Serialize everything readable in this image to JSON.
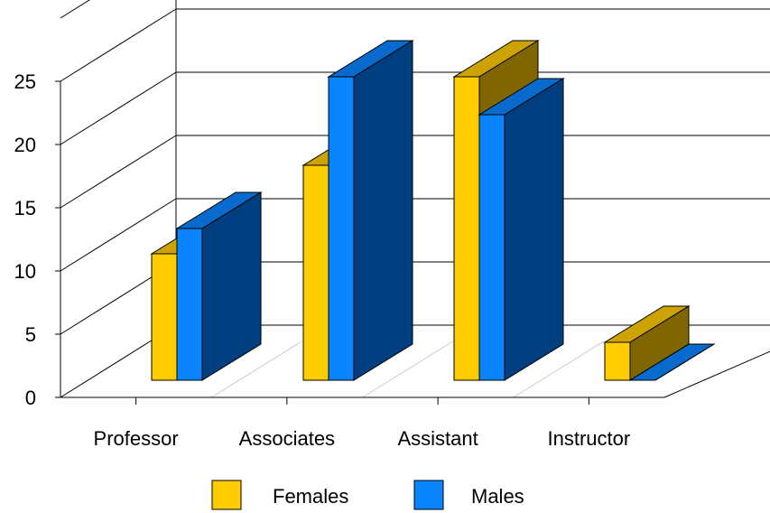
{
  "chart_data": {
    "type": "bar",
    "style": "3d",
    "categories": [
      "Professor",
      "Associates",
      "Assistant",
      "Instructor"
    ],
    "series": [
      {
        "name": "Females",
        "values": [
          10,
          17,
          24,
          3
        ],
        "color": "#FFCC00",
        "side_color": "#806600"
      },
      {
        "name": "Males",
        "values": [
          12,
          24,
          21,
          0
        ],
        "color": "#0A84FF",
        "side_color": "#003F7F"
      }
    ],
    "y_ticks": [
      "0",
      "5",
      "10",
      "15",
      "20",
      "25"
    ],
    "ylim": [
      0,
      25
    ],
    "grid": true,
    "legend": "bottom"
  }
}
